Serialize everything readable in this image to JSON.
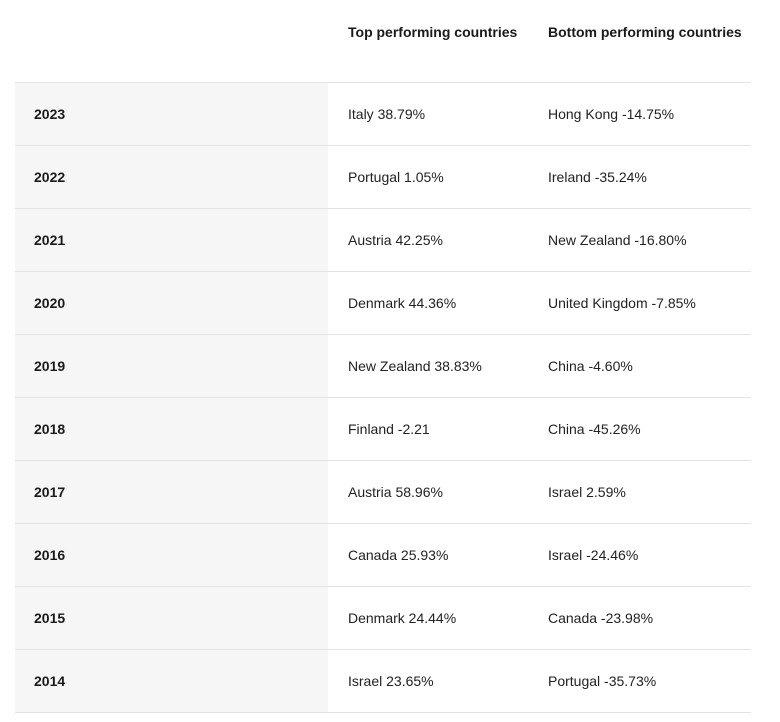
{
  "table": {
    "headers": {
      "year": "",
      "top": "Top performing countries",
      "bottom": "Bottom performing countries"
    },
    "rows": [
      {
        "year": "2023",
        "top": "Italy 38.79%",
        "bottom": "Hong Kong -14.75%"
      },
      {
        "year": "2022",
        "top": "Portugal 1.05%",
        "bottom": "Ireland -35.24%"
      },
      {
        "year": "2021",
        "top": "Austria 42.25%",
        "bottom": "New Zealand -16.80%"
      },
      {
        "year": "2020",
        "top": "Denmark 44.36%",
        "bottom": "United Kingdom -7.85%"
      },
      {
        "year": "2019",
        "top": "New Zealand 38.83%",
        "bottom": "China -4.60%"
      },
      {
        "year": "2018",
        "top": "Finland -2.21",
        "bottom": "China -45.26%"
      },
      {
        "year": "2017",
        "top": "Austria 58.96%",
        "bottom": "Israel 2.59%"
      },
      {
        "year": "2016",
        "top": "Canada 25.93%",
        "bottom": "Israel -24.46%"
      },
      {
        "year": "2015",
        "top": "Denmark 24.44%",
        "bottom": "Canada -23.98%"
      },
      {
        "year": "2014",
        "top": "Israel 23.65%",
        "bottom": "Portugal -35.73%"
      }
    ]
  }
}
